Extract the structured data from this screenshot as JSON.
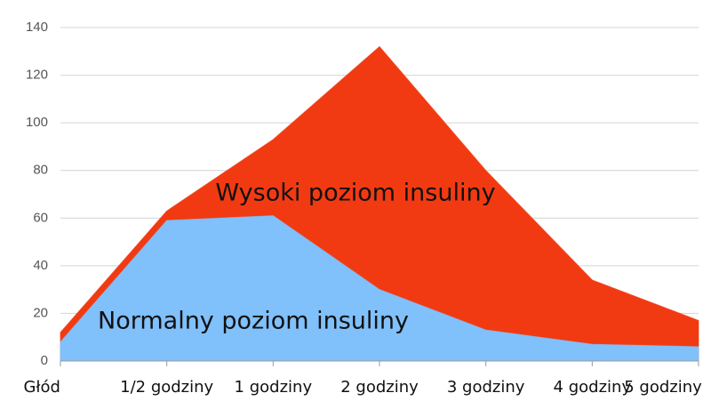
{
  "chart_data": {
    "type": "area",
    "categories": [
      "Głód",
      "1/2 godziny",
      "1 godziny",
      "2 godziny",
      "3 godziny",
      "4 godziny",
      "5 godziny"
    ],
    "series": [
      {
        "name": "Wysoki poziom insuliny",
        "color": "#f23a12",
        "values": [
          12,
          63,
          93,
          132,
          80,
          34,
          17
        ]
      },
      {
        "name": "Normalny poziom insuliny",
        "color": "#80c0fb",
        "values": [
          8,
          59,
          61,
          30,
          13,
          7,
          6
        ]
      }
    ],
    "ylim": [
      0,
      140
    ],
    "yticks": [
      0,
      20,
      40,
      60,
      80,
      100,
      120,
      140
    ],
    "grid": true
  }
}
